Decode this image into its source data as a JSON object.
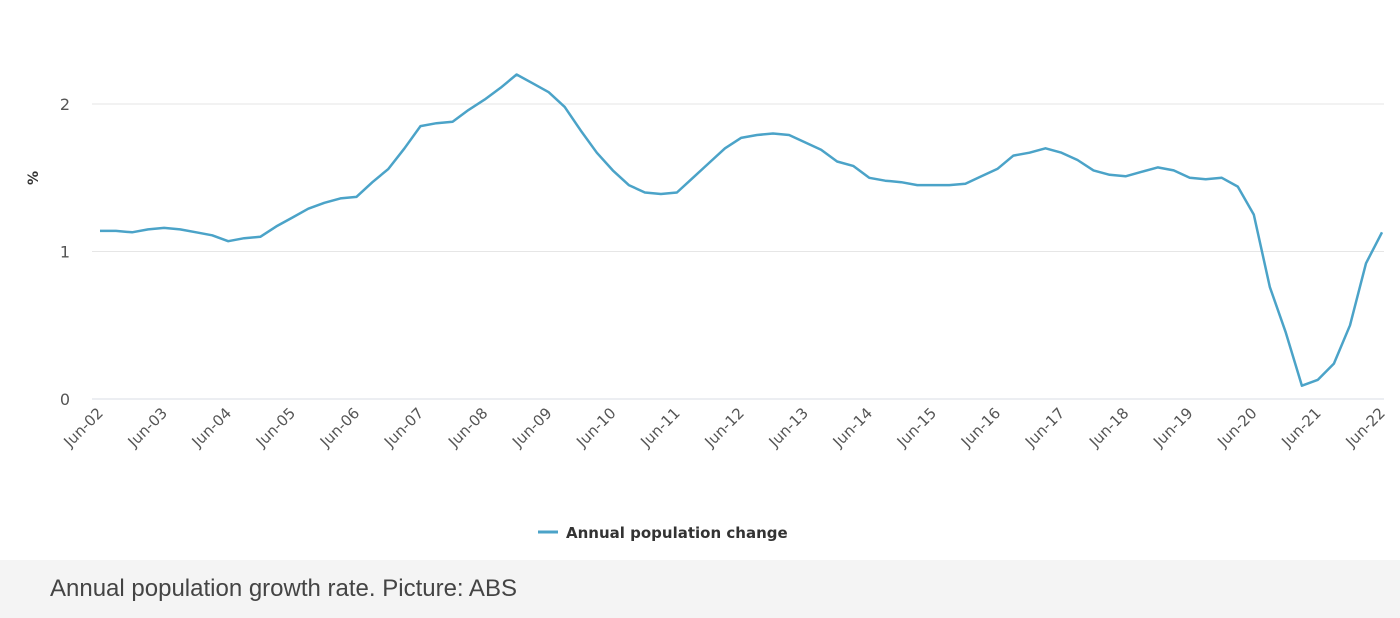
{
  "chart_data": {
    "type": "line",
    "title": "",
    "xlabel": "",
    "ylabel": "%",
    "ylim": [
      0,
      2.2
    ],
    "yticks": [
      0,
      1,
      2
    ],
    "grid": true,
    "x_tick_labels": [
      "Jun-02",
      "Jun-03",
      "Jun-04",
      "Jun-05",
      "Jun-06",
      "Jun-07",
      "Jun-08",
      "Jun-09",
      "Jun-10",
      "Jun-11",
      "Jun-12",
      "Jun-13",
      "Jun-14",
      "Jun-15",
      "Jun-16",
      "Jun-17",
      "Jun-18",
      "Jun-19",
      "Jun-20",
      "Jun-21",
      "Jun-22"
    ],
    "x_frequency": "quarterly",
    "legend_position": "bottom-center",
    "series": [
      {
        "name": "Annual population change",
        "color": "#4ba3c8",
        "values": [
          1.14,
          1.14,
          1.13,
          1.15,
          1.16,
          1.15,
          1.13,
          1.11,
          1.07,
          1.09,
          1.1,
          1.17,
          1.23,
          1.29,
          1.33,
          1.36,
          1.37,
          1.47,
          1.56,
          1.7,
          1.85,
          1.87,
          1.88,
          1.96,
          2.03,
          2.11,
          2.2,
          2.14,
          2.08,
          1.98,
          1.82,
          1.67,
          1.55,
          1.45,
          1.4,
          1.39,
          1.4,
          1.5,
          1.6,
          1.7,
          1.77,
          1.79,
          1.8,
          1.79,
          1.74,
          1.69,
          1.61,
          1.58,
          1.5,
          1.48,
          1.47,
          1.45,
          1.45,
          1.45,
          1.46,
          1.51,
          1.56,
          1.65,
          1.67,
          1.7,
          1.67,
          1.62,
          1.55,
          1.52,
          1.51,
          1.54,
          1.57,
          1.55,
          1.5,
          1.49,
          1.5,
          1.44,
          1.25,
          0.76,
          0.45,
          0.09,
          0.13,
          0.24,
          0.5,
          0.92,
          1.13
        ]
      }
    ]
  },
  "caption": "Annual population growth rate. Picture: ABS"
}
